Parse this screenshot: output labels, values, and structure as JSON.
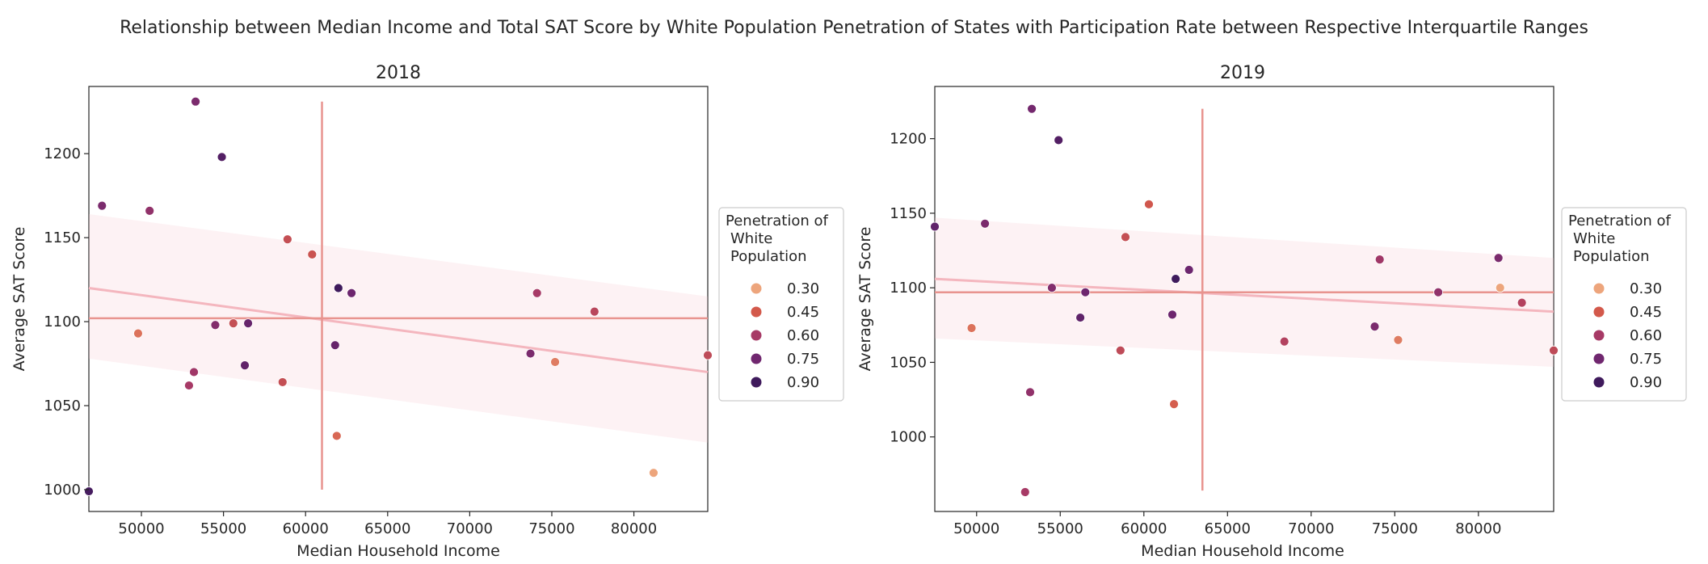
{
  "figure": {
    "title": "Relationship between Median Income and Total SAT Score by White Population Penetration of States with Participation Rate between Respective Interquartile Ranges"
  },
  "chart_data": [
    {
      "type": "scatter",
      "title": "2018",
      "xlabel": "Median Household Income",
      "ylabel": "Average SAT Score",
      "xlim": [
        46800,
        84500
      ],
      "ylim": [
        987,
        1240
      ],
      "xticks": [
        "50000",
        "55000",
        "60000",
        "65000",
        "70000",
        "75000",
        "80000"
      ],
      "yticks": [
        "1000",
        "1050",
        "1100",
        "1150",
        "1200"
      ],
      "grid": false,
      "legend": {
        "title_lines": [
          "Penetration of",
          "White",
          "Population"
        ],
        "placement": "right",
        "entries": [
          {
            "label": "0.30",
            "color": "#eda57c"
          },
          {
            "label": "0.45",
            "color": "#d3594b"
          },
          {
            "label": "0.60",
            "color": "#a73a66"
          },
          {
            "label": "0.75",
            "color": "#70276f"
          },
          {
            "label": "0.90",
            "color": "#3f1a5c"
          }
        ]
      },
      "points": [
        {
          "x": 46800,
          "y": 999,
          "pen": 0.88
        },
        {
          "x": 47600,
          "y": 1169,
          "pen": 0.72
        },
        {
          "x": 49800,
          "y": 1093,
          "pen": 0.4
        },
        {
          "x": 50500,
          "y": 1166,
          "pen": 0.66
        },
        {
          "x": 52900,
          "y": 1062,
          "pen": 0.6
        },
        {
          "x": 53200,
          "y": 1070,
          "pen": 0.62
        },
        {
          "x": 53300,
          "y": 1231,
          "pen": 0.72
        },
        {
          "x": 54500,
          "y": 1098,
          "pen": 0.7
        },
        {
          "x": 54900,
          "y": 1198,
          "pen": 0.84
        },
        {
          "x": 55600,
          "y": 1099,
          "pen": 0.5
        },
        {
          "x": 56300,
          "y": 1074,
          "pen": 0.8
        },
        {
          "x": 56500,
          "y": 1099,
          "pen": 0.78
        },
        {
          "x": 58600,
          "y": 1064,
          "pen": 0.5
        },
        {
          "x": 58900,
          "y": 1149,
          "pen": 0.5
        },
        {
          "x": 60400,
          "y": 1140,
          "pen": 0.48
        },
        {
          "x": 61800,
          "y": 1086,
          "pen": 0.78
        },
        {
          "x": 61900,
          "y": 1032,
          "pen": 0.42
        },
        {
          "x": 62000,
          "y": 1120,
          "pen": 0.9
        },
        {
          "x": 62800,
          "y": 1117,
          "pen": 0.76
        },
        {
          "x": 73700,
          "y": 1081,
          "pen": 0.72
        },
        {
          "x": 74100,
          "y": 1117,
          "pen": 0.6
        },
        {
          "x": 75200,
          "y": 1076,
          "pen": 0.38
        },
        {
          "x": 77600,
          "y": 1106,
          "pen": 0.54
        },
        {
          "x": 81200,
          "y": 1010,
          "pen": 0.3
        },
        {
          "x": 84500,
          "y": 1080,
          "pen": 0.52
        }
      ],
      "median_x": 61000,
      "median_y": 1102,
      "vline_y": [
        1000,
        1231
      ],
      "regression": {
        "x": [
          46800,
          84500
        ],
        "y": [
          1120,
          1070
        ],
        "band_lo": [
          1078,
          1028
        ],
        "band_hi": [
          1164,
          1115
        ]
      }
    },
    {
      "type": "scatter",
      "title": "2019",
      "xlabel": "Median Household Income",
      "ylabel": "Average SAT Score",
      "xlim": [
        47500,
        84500
      ],
      "ylim": [
        950,
        1235
      ],
      "xticks": [
        "50000",
        "55000",
        "60000",
        "65000",
        "70000",
        "75000",
        "80000"
      ],
      "yticks": [
        "1000",
        "1050",
        "1100",
        "1150",
        "1200"
      ],
      "grid": false,
      "legend": {
        "title_lines": [
          "Penetration of",
          "White",
          "Population"
        ],
        "placement": "right",
        "entries": [
          {
            "label": "0.30",
            "color": "#eda57c"
          },
          {
            "label": "0.45",
            "color": "#d3594b"
          },
          {
            "label": "0.60",
            "color": "#a73a66"
          },
          {
            "label": "0.75",
            "color": "#70276f"
          },
          {
            "label": "0.90",
            "color": "#3f1a5c"
          }
        ]
      },
      "points": [
        {
          "x": 47500,
          "y": 1141,
          "pen": 0.8
        },
        {
          "x": 49700,
          "y": 1073,
          "pen": 0.4
        },
        {
          "x": 50500,
          "y": 1143,
          "pen": 0.72
        },
        {
          "x": 52900,
          "y": 963,
          "pen": 0.6
        },
        {
          "x": 53200,
          "y": 1030,
          "pen": 0.66
        },
        {
          "x": 53300,
          "y": 1220,
          "pen": 0.74
        },
        {
          "x": 54500,
          "y": 1100,
          "pen": 0.7
        },
        {
          "x": 54900,
          "y": 1199,
          "pen": 0.84
        },
        {
          "x": 56200,
          "y": 1080,
          "pen": 0.8
        },
        {
          "x": 56500,
          "y": 1097,
          "pen": 0.76
        },
        {
          "x": 58600,
          "y": 1058,
          "pen": 0.52
        },
        {
          "x": 58900,
          "y": 1134,
          "pen": 0.5
        },
        {
          "x": 60300,
          "y": 1156,
          "pen": 0.46
        },
        {
          "x": 61700,
          "y": 1082,
          "pen": 0.76
        },
        {
          "x": 61800,
          "y": 1022,
          "pen": 0.44
        },
        {
          "x": 61900,
          "y": 1106,
          "pen": 0.9
        },
        {
          "x": 62700,
          "y": 1112,
          "pen": 0.76
        },
        {
          "x": 68400,
          "y": 1064,
          "pen": 0.56
        },
        {
          "x": 73800,
          "y": 1074,
          "pen": 0.72
        },
        {
          "x": 74100,
          "y": 1119,
          "pen": 0.62
        },
        {
          "x": 75200,
          "y": 1065,
          "pen": 0.38
        },
        {
          "x": 77600,
          "y": 1097,
          "pen": 0.66
        },
        {
          "x": 81200,
          "y": 1120,
          "pen": 0.72
        },
        {
          "x": 81300,
          "y": 1100,
          "pen": 0.3
        },
        {
          "x": 82600,
          "y": 1090,
          "pen": 0.56
        },
        {
          "x": 84500,
          "y": 1058,
          "pen": 0.52
        }
      ],
      "median_x": 63500,
      "median_y": 1097,
      "vline_y": [
        964,
        1220
      ],
      "regression": {
        "x": [
          47500,
          84500
        ],
        "y": [
          1106,
          1084
        ],
        "band_lo": [
          1066,
          1047
        ],
        "band_hi": [
          1147,
          1120
        ]
      }
    }
  ]
}
